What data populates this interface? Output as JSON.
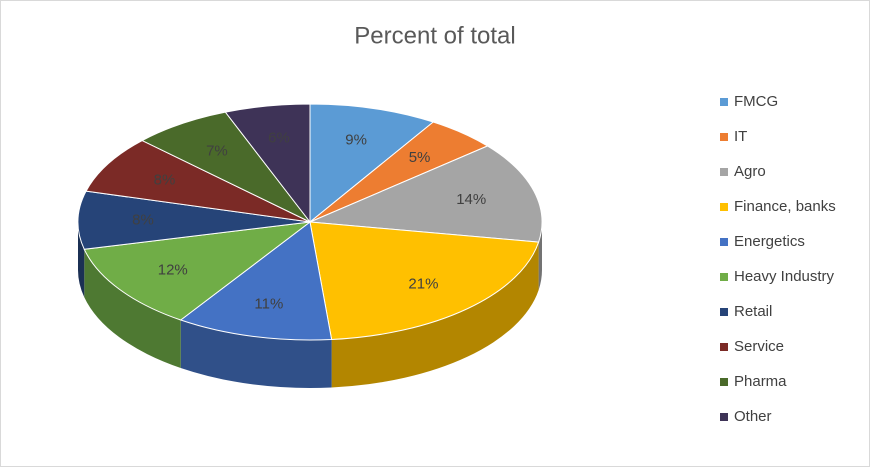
{
  "chart_data": {
    "type": "pie3d",
    "title": "Percent of total",
    "categories": [
      "FMCG",
      "IT",
      "Agro",
      "Finance, banks",
      "Energetics",
      "Heavy Industry",
      "Retail",
      "Service",
      "Pharma",
      "Other"
    ],
    "values": [
      9,
      5,
      14,
      21,
      11,
      12,
      8,
      8,
      7,
      6
    ],
    "value_labels": [
      "9%",
      "5%",
      "14%",
      "21%",
      "11%",
      "12%",
      "8%",
      "8%",
      "7%",
      "6%"
    ],
    "colors": [
      "#5b9bd5",
      "#ed7d31",
      "#a5a5a5",
      "#ffc000",
      "#4472c4",
      "#70ad47",
      "#264478",
      "#7b2a26",
      "#4a6a2a",
      "#3e3357"
    ],
    "legend": "right"
  }
}
